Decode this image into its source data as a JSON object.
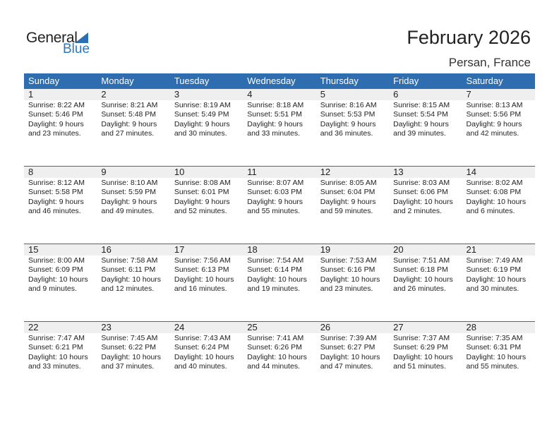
{
  "logo": {
    "line1": "General",
    "line2": "Blue"
  },
  "title": "February 2026",
  "location": "Persan, France",
  "colors": {
    "header": "#2e6eb0",
    "accent": "#2a78c2",
    "day_row": "#efefef"
  },
  "weekdays": [
    "Sunday",
    "Monday",
    "Tuesday",
    "Wednesday",
    "Thursday",
    "Friday",
    "Saturday"
  ],
  "days": [
    {
      "day": "1",
      "sunrise": "Sunrise: 8:22 AM",
      "sunset": "Sunset: 5:46 PM",
      "daylight": "Daylight: 9 hours",
      "minutes": "and 23 minutes."
    },
    {
      "day": "2",
      "sunrise": "Sunrise: 8:21 AM",
      "sunset": "Sunset: 5:48 PM",
      "daylight": "Daylight: 9 hours",
      "minutes": "and 27 minutes."
    },
    {
      "day": "3",
      "sunrise": "Sunrise: 8:19 AM",
      "sunset": "Sunset: 5:49 PM",
      "daylight": "Daylight: 9 hours",
      "minutes": "and 30 minutes."
    },
    {
      "day": "4",
      "sunrise": "Sunrise: 8:18 AM",
      "sunset": "Sunset: 5:51 PM",
      "daylight": "Daylight: 9 hours",
      "minutes": "and 33 minutes."
    },
    {
      "day": "5",
      "sunrise": "Sunrise: 8:16 AM",
      "sunset": "Sunset: 5:53 PM",
      "daylight": "Daylight: 9 hours",
      "minutes": "and 36 minutes."
    },
    {
      "day": "6",
      "sunrise": "Sunrise: 8:15 AM",
      "sunset": "Sunset: 5:54 PM",
      "daylight": "Daylight: 9 hours",
      "minutes": "and 39 minutes."
    },
    {
      "day": "7",
      "sunrise": "Sunrise: 8:13 AM",
      "sunset": "Sunset: 5:56 PM",
      "daylight": "Daylight: 9 hours",
      "minutes": "and 42 minutes."
    },
    {
      "day": "8",
      "sunrise": "Sunrise: 8:12 AM",
      "sunset": "Sunset: 5:58 PM",
      "daylight": "Daylight: 9 hours",
      "minutes": "and 46 minutes."
    },
    {
      "day": "9",
      "sunrise": "Sunrise: 8:10 AM",
      "sunset": "Sunset: 5:59 PM",
      "daylight": "Daylight: 9 hours",
      "minutes": "and 49 minutes."
    },
    {
      "day": "10",
      "sunrise": "Sunrise: 8:08 AM",
      "sunset": "Sunset: 6:01 PM",
      "daylight": "Daylight: 9 hours",
      "minutes": "and 52 minutes."
    },
    {
      "day": "11",
      "sunrise": "Sunrise: 8:07 AM",
      "sunset": "Sunset: 6:03 PM",
      "daylight": "Daylight: 9 hours",
      "minutes": "and 55 minutes."
    },
    {
      "day": "12",
      "sunrise": "Sunrise: 8:05 AM",
      "sunset": "Sunset: 6:04 PM",
      "daylight": "Daylight: 9 hours",
      "minutes": "and 59 minutes."
    },
    {
      "day": "13",
      "sunrise": "Sunrise: 8:03 AM",
      "sunset": "Sunset: 6:06 PM",
      "daylight": "Daylight: 10 hours",
      "minutes": "and 2 minutes."
    },
    {
      "day": "14",
      "sunrise": "Sunrise: 8:02 AM",
      "sunset": "Sunset: 6:08 PM",
      "daylight": "Daylight: 10 hours",
      "minutes": "and 6 minutes."
    },
    {
      "day": "15",
      "sunrise": "Sunrise: 8:00 AM",
      "sunset": "Sunset: 6:09 PM",
      "daylight": "Daylight: 10 hours",
      "minutes": "and 9 minutes."
    },
    {
      "day": "16",
      "sunrise": "Sunrise: 7:58 AM",
      "sunset": "Sunset: 6:11 PM",
      "daylight": "Daylight: 10 hours",
      "minutes": "and 12 minutes."
    },
    {
      "day": "17",
      "sunrise": "Sunrise: 7:56 AM",
      "sunset": "Sunset: 6:13 PM",
      "daylight": "Daylight: 10 hours",
      "minutes": "and 16 minutes."
    },
    {
      "day": "18",
      "sunrise": "Sunrise: 7:54 AM",
      "sunset": "Sunset: 6:14 PM",
      "daylight": "Daylight: 10 hours",
      "minutes": "and 19 minutes."
    },
    {
      "day": "19",
      "sunrise": "Sunrise: 7:53 AM",
      "sunset": "Sunset: 6:16 PM",
      "daylight": "Daylight: 10 hours",
      "minutes": "and 23 minutes."
    },
    {
      "day": "20",
      "sunrise": "Sunrise: 7:51 AM",
      "sunset": "Sunset: 6:18 PM",
      "daylight": "Daylight: 10 hours",
      "minutes": "and 26 minutes."
    },
    {
      "day": "21",
      "sunrise": "Sunrise: 7:49 AM",
      "sunset": "Sunset: 6:19 PM",
      "daylight": "Daylight: 10 hours",
      "minutes": "and 30 minutes."
    },
    {
      "day": "22",
      "sunrise": "Sunrise: 7:47 AM",
      "sunset": "Sunset: 6:21 PM",
      "daylight": "Daylight: 10 hours",
      "minutes": "and 33 minutes."
    },
    {
      "day": "23",
      "sunrise": "Sunrise: 7:45 AM",
      "sunset": "Sunset: 6:22 PM",
      "daylight": "Daylight: 10 hours",
      "minutes": "and 37 minutes."
    },
    {
      "day": "24",
      "sunrise": "Sunrise: 7:43 AM",
      "sunset": "Sunset: 6:24 PM",
      "daylight": "Daylight: 10 hours",
      "minutes": "and 40 minutes."
    },
    {
      "day": "25",
      "sunrise": "Sunrise: 7:41 AM",
      "sunset": "Sunset: 6:26 PM",
      "daylight": "Daylight: 10 hours",
      "minutes": "and 44 minutes."
    },
    {
      "day": "26",
      "sunrise": "Sunrise: 7:39 AM",
      "sunset": "Sunset: 6:27 PM",
      "daylight": "Daylight: 10 hours",
      "minutes": "and 47 minutes."
    },
    {
      "day": "27",
      "sunrise": "Sunrise: 7:37 AM",
      "sunset": "Sunset: 6:29 PM",
      "daylight": "Daylight: 10 hours",
      "minutes": "and 51 minutes."
    },
    {
      "day": "28",
      "sunrise": "Sunrise: 7:35 AM",
      "sunset": "Sunset: 6:31 PM",
      "daylight": "Daylight: 10 hours",
      "minutes": "and 55 minutes."
    }
  ]
}
